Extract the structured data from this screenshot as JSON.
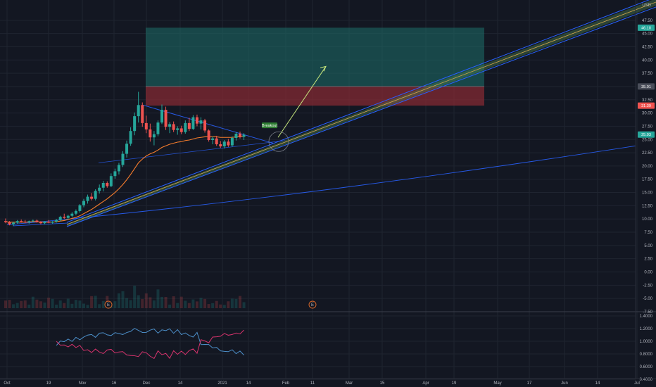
{
  "chart_data": {
    "type": "candlestick",
    "currency": "USD",
    "price_axis": {
      "min": -7.5,
      "max": 50,
      "ticks": [
        "47.50",
        "45.00",
        "42.50",
        "40.00",
        "37.50",
        "35.00",
        "32.50",
        "30.00",
        "27.50",
        "25.00",
        "22.50",
        "20.00",
        "17.50",
        "15.00",
        "12.50",
        "10.00",
        "7.50",
        "5.00",
        "2.50",
        "0.00",
        "-2.50",
        "-5.00",
        "-7.50"
      ]
    },
    "price_badges": [
      {
        "label": "46.10",
        "value": 46.1,
        "color": "#26a69a"
      },
      {
        "label": "35.01",
        "value": 35.01,
        "color": "#4a4e5a"
      },
      {
        "label": "31.39",
        "value": 31.39,
        "color": "#ef5350"
      },
      {
        "label": "25.93",
        "value": 25.93,
        "color": "#26a69a"
      }
    ],
    "time_axis": [
      "Oct",
      "19",
      "Nov",
      "16",
      "Dec",
      "14",
      "2021",
      "14",
      "Feb",
      "11",
      "Mar",
      "15",
      "Apr",
      "19",
      "May",
      "17",
      "Jun",
      "14",
      "Jul"
    ],
    "candles": [
      [
        9.6,
        10.1,
        9.2,
        9.4
      ],
      [
        9.4,
        9.6,
        8.8,
        9.0
      ],
      [
        9.0,
        9.5,
        8.7,
        9.3
      ],
      [
        9.3,
        9.8,
        9.1,
        9.6
      ],
      [
        9.6,
        9.9,
        9.3,
        9.5
      ],
      [
        9.5,
        9.8,
        9.2,
        9.4
      ],
      [
        9.4,
        9.7,
        9.1,
        9.6
      ],
      [
        9.6,
        9.9,
        9.4,
        9.7
      ],
      [
        9.7,
        9.9,
        9.3,
        9.4
      ],
      [
        9.4,
        9.6,
        9.0,
        9.2
      ],
      [
        9.2,
        9.6,
        9.0,
        9.5
      ],
      [
        9.5,
        9.8,
        9.2,
        9.3
      ],
      [
        9.3,
        9.6,
        9.1,
        9.5
      ],
      [
        9.5,
        10.0,
        9.3,
        9.8
      ],
      [
        9.8,
        10.6,
        9.6,
        10.4
      ],
      [
        10.4,
        11.0,
        10.0,
        10.2
      ],
      [
        10.2,
        10.8,
        9.9,
        10.6
      ],
      [
        10.6,
        11.3,
        10.3,
        11.0
      ],
      [
        11.0,
        11.8,
        10.7,
        11.5
      ],
      [
        11.5,
        12.8,
        11.2,
        12.6
      ],
      [
        12.6,
        13.8,
        12.2,
        13.4
      ],
      [
        13.4,
        14.6,
        12.9,
        14.2
      ],
      [
        14.2,
        14.9,
        13.5,
        13.8
      ],
      [
        13.8,
        15.6,
        13.5,
        15.3
      ],
      [
        15.3,
        16.5,
        14.8,
        15.9
      ],
      [
        15.9,
        17.2,
        15.2,
        16.8
      ],
      [
        16.8,
        17.1,
        15.9,
        16.2
      ],
      [
        16.2,
        18.6,
        16.0,
        18.1
      ],
      [
        18.1,
        19.5,
        17.6,
        19.0
      ],
      [
        19.0,
        20.6,
        18.4,
        20.2
      ],
      [
        20.2,
        22.8,
        19.8,
        22.3
      ],
      [
        22.3,
        24.8,
        21.6,
        24.2
      ],
      [
        24.2,
        27.3,
        23.8,
        26.6
      ],
      [
        26.6,
        30.1,
        25.8,
        29.4
      ],
      [
        29.4,
        34.0,
        28.2,
        31.5
      ],
      [
        31.5,
        32.0,
        27.4,
        28.1
      ],
      [
        28.1,
        29.5,
        26.2,
        26.9
      ],
      [
        26.9,
        28.0,
        24.6,
        25.4
      ],
      [
        25.4,
        26.6,
        23.9,
        26.0
      ],
      [
        26.0,
        28.6,
        25.6,
        28.2
      ],
      [
        28.2,
        31.6,
        27.9,
        30.6
      ],
      [
        30.6,
        31.2,
        26.8,
        27.4
      ],
      [
        27.4,
        28.3,
        26.2,
        27.9
      ],
      [
        27.9,
        28.4,
        26.4,
        26.8
      ],
      [
        26.8,
        27.5,
        25.9,
        27.1
      ],
      [
        27.1,
        27.6,
        26.0,
        26.4
      ],
      [
        26.4,
        28.6,
        26.1,
        28.1
      ],
      [
        28.1,
        29.1,
        26.6,
        27.0
      ],
      [
        27.0,
        29.6,
        26.8,
        29.2
      ],
      [
        29.2,
        29.7,
        27.5,
        28.0
      ],
      [
        28.0,
        29.2,
        26.9,
        28.6
      ],
      [
        28.6,
        28.9,
        26.3,
        26.7
      ],
      [
        26.7,
        26.9,
        24.6,
        24.9
      ],
      [
        24.9,
        25.6,
        24.1,
        25.2
      ],
      [
        25.2,
        25.7,
        23.8,
        24.1
      ],
      [
        24.1,
        24.7,
        23.4,
        23.7
      ],
      [
        23.7,
        24.9,
        23.3,
        24.6
      ],
      [
        24.6,
        25.1,
        23.6,
        23.9
      ],
      [
        23.9,
        25.6,
        23.6,
        25.3
      ],
      [
        25.3,
        26.4,
        24.8,
        26.1
      ],
      [
        26.1,
        26.5,
        25.2,
        25.5
      ],
      [
        25.5,
        26.2,
        24.9,
        25.9
      ]
    ],
    "moving_average": [
      9.5,
      9.4,
      9.4,
      9.4,
      9.4,
      9.4,
      9.4,
      9.5,
      9.5,
      9.4,
      9.4,
      9.4,
      9.4,
      9.5,
      9.6,
      9.7,
      9.9,
      10.1,
      10.3,
      10.6,
      11.0,
      11.4,
      11.8,
      12.3,
      12.8,
      13.3,
      13.8,
      14.4,
      15.0,
      15.7,
      16.5,
      17.4,
      18.4,
      19.5,
      20.6,
      21.3,
      21.9,
      22.3,
      22.6,
      23.0,
      23.5,
      23.8,
      24.1,
      24.3,
      24.5,
      24.6,
      24.8,
      24.9,
      25.1,
      25.3,
      25.4,
      25.5,
      25.5,
      25.5,
      25.5,
      25.4,
      25.4,
      25.4,
      25.4,
      25.5,
      25.5,
      25.6
    ],
    "long_position": {
      "entry": 35.01,
      "target": 46.1,
      "stop": 31.39
    },
    "annotation_label": "Breakout",
    "lower_pane": {
      "ticks": [
        "1.4000",
        "1.2000",
        "1.0000",
        "0.8000",
        "0.6000",
        "0.4000"
      ],
      "range": [
        0.4,
        1.4
      ]
    },
    "event_markers": [
      "E",
      "E"
    ],
    "colors": {
      "background": "#131722",
      "up": "#26a69a",
      "down": "#ef5350",
      "trendline": "#2962ff",
      "ma": "#f57c2c",
      "target_zone": "#1e6f6a",
      "stop_zone": "#8a2b33",
      "arrow": "#c6e67c",
      "osc_blue": "#4c8fc9",
      "osc_pink": "#d6336c"
    }
  }
}
